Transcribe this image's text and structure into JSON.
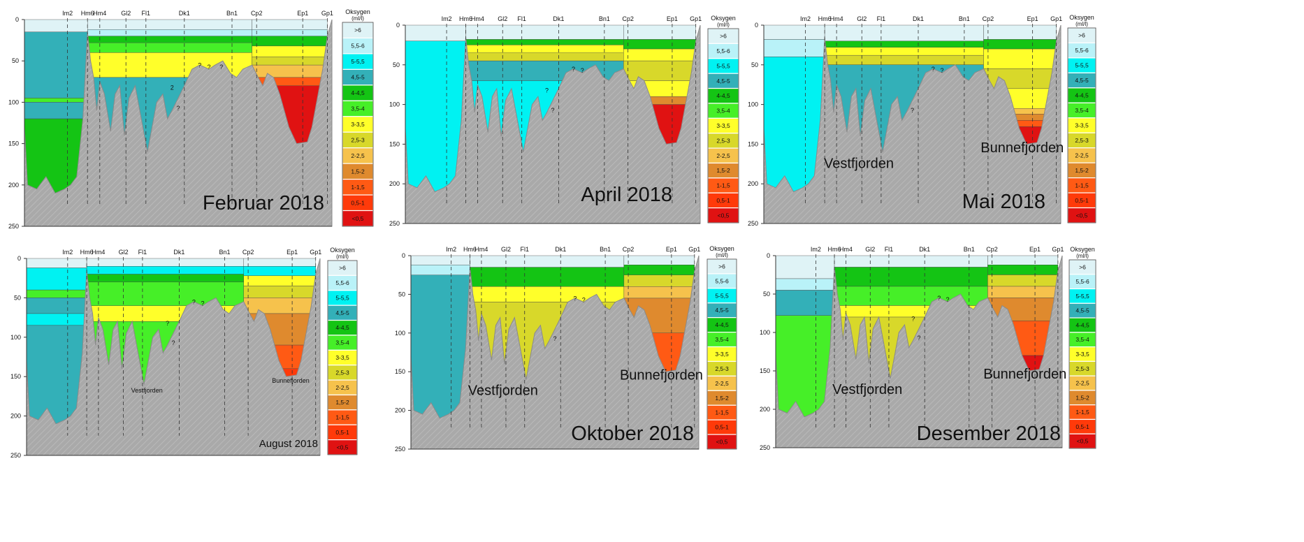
{
  "figure": {
    "station_labels": [
      "Im2",
      "Hm6",
      "Hm4",
      "Gl2",
      "Fl1",
      "Dk1",
      "Bn1",
      "Cp2",
      "Ep1",
      "Gp1"
    ],
    "depth_ticks": [
      "0",
      "50",
      "100",
      "150",
      "200",
      "250"
    ],
    "legend_title_line1": "Oksygen",
    "legend_title_line2": "(ml/l)"
  },
  "chart_data": [
    {
      "type": "heatmap",
      "title": "Februar 2018",
      "yaxis": {
        "quantity": "depth (m)",
        "range": [
          0,
          250
        ],
        "reversed": true,
        "ticks": [
          0,
          50,
          100,
          150,
          200,
          250
        ]
      },
      "x_stations": [
        "Im2",
        "Hm6",
        "Hm4",
        "Gl2",
        "Fl1",
        "Dk1",
        "Bn1",
        "Cp2",
        "Ep1",
        "Gp1"
      ],
      "annotations": [
        "?",
        "?",
        "?",
        "2",
        "?"
      ],
      "dominant_classes": {
        "Vestfjorden": "4,5-5 and 3,5-4",
        "Bunnefjorden": "<0,5 to 2-2,5"
      }
    },
    {
      "type": "heatmap",
      "title": "April 2018",
      "yaxis": {
        "quantity": "depth (m)",
        "range": [
          0,
          250
        ],
        "reversed": true,
        "ticks": [
          0,
          50,
          100,
          150,
          200,
          250
        ]
      },
      "x_stations": [
        "Im2",
        "Hm6",
        "Hm4",
        "Gl2",
        "Fl1",
        "Dk1",
        "Bn1",
        "Cp2",
        "Ep1",
        "Gp1"
      ],
      "annotations": [
        "?",
        "?",
        "?",
        "?"
      ],
      "dominant_classes": {
        "Vestfjorden": "5-5,5",
        "Bunnefjorden": "<0,5 to 3-3,5"
      }
    },
    {
      "type": "heatmap",
      "title": "Mai 2018",
      "region_labels": [
        "Vestfjorden",
        "Bunnefjorden"
      ],
      "yaxis": {
        "quantity": "depth (m)",
        "range": [
          0,
          250
        ],
        "reversed": true,
        "ticks": [
          0,
          50,
          100,
          150,
          200,
          250
        ]
      },
      "x_stations": [
        "Im2",
        "Hm6",
        "Hm4",
        "Gl2",
        "Fl1",
        "Dk1",
        "Bn1",
        "Cp2",
        "Ep1",
        "Gp1"
      ],
      "annotations": [
        "?",
        "?",
        "?"
      ],
      "dominant_classes": {
        "Vestfjorden": "5-5,5 and 4,5-5",
        "Bunnefjorden": "<0,5 to 3-3,5"
      }
    },
    {
      "type": "heatmap",
      "title": "August 2018",
      "region_labels": [
        "Vestfjorden",
        "Bunnefjorden"
      ],
      "yaxis": {
        "quantity": "depth (m)",
        "range": [
          0,
          250
        ],
        "reversed": true,
        "ticks": [
          0,
          50,
          100,
          150,
          200,
          250
        ]
      },
      "x_stations": [
        "Im2",
        "Hm6",
        "Hm4",
        "Gl2",
        "Fl1",
        "Dk1",
        "Bn1",
        "Cp2",
        "Ep1",
        "Gp1"
      ],
      "annotations": [
        "?",
        "?",
        "?",
        "?"
      ],
      "dominant_classes": {
        "Vestfjorden": "4,5-5 and 3,5-4",
        "Bunnefjorden": "0,5-1 to 2-2,5"
      }
    },
    {
      "type": "heatmap",
      "title": "Oktober 2018",
      "region_labels": [
        "Vestfjorden",
        "Bunnefjorden"
      ],
      "yaxis": {
        "quantity": "depth (m)",
        "range": [
          0,
          250
        ],
        "reversed": true,
        "ticks": [
          0,
          50,
          100,
          150,
          200,
          250
        ]
      },
      "x_stations": [
        "Im2",
        "Hm6",
        "Hm4",
        "Gl2",
        "Fl1",
        "Dk1",
        "Bn1",
        "Cp2",
        "Ep1",
        "Gp1"
      ],
      "annotations": [
        "?",
        "?",
        "?"
      ],
      "dominant_classes": {
        "Vestfjorden": "4,5-5 and 2,5-3",
        "Bunnefjorden": "1-1,5 to 2-2,5"
      }
    },
    {
      "type": "heatmap",
      "title": "Desember 2018",
      "region_labels": [
        "Vestfjorden",
        "Bunnefjorden"
      ],
      "yaxis": {
        "quantity": "depth (m)",
        "range": [
          0,
          250
        ],
        "reversed": true,
        "ticks": [
          0,
          50,
          100,
          150,
          200,
          250
        ]
      },
      "x_stations": [
        "Im2",
        "Hm6",
        "Hm4",
        "Gl2",
        "Fl1",
        "Dk1",
        "Bn1",
        "Cp2",
        "Ep1",
        "Gp1"
      ],
      "annotations": [
        "?",
        "?",
        "?",
        "?"
      ],
      "dominant_classes": {
        "Vestfjorden": "3,5-4 and 3-3,5",
        "Bunnefjorden": "1-1,5 to 2-2,5"
      }
    }
  ],
  "legend": {
    "classes": [
      {
        "label": ">6",
        "color": "#dff3f6"
      },
      {
        "label": "5,5-6",
        "color": "#b9f2f8"
      },
      {
        "label": "5-5,5",
        "color": "#00f2f2"
      },
      {
        "label": "4,5-5",
        "color": "#33b0b8"
      },
      {
        "label": "4-4,5",
        "color": "#14c414"
      },
      {
        "label": "3,5-4",
        "color": "#46ef28"
      },
      {
        "label": "3-3,5",
        "color": "#ffff2a"
      },
      {
        "label": "2,5-3",
        "color": "#d8d82a"
      },
      {
        "label": "2-2,5",
        "color": "#f6c24c"
      },
      {
        "label": "1,5-2",
        "color": "#df8a2e"
      },
      {
        "label": "1-1,5",
        "color": "#ff5a14"
      },
      {
        "label": "0,5-1",
        "color": "#ff3a0a"
      },
      {
        "label": "<0,5",
        "color": "#e01212"
      }
    ],
    "seabed_color": "#a9a9a9"
  }
}
